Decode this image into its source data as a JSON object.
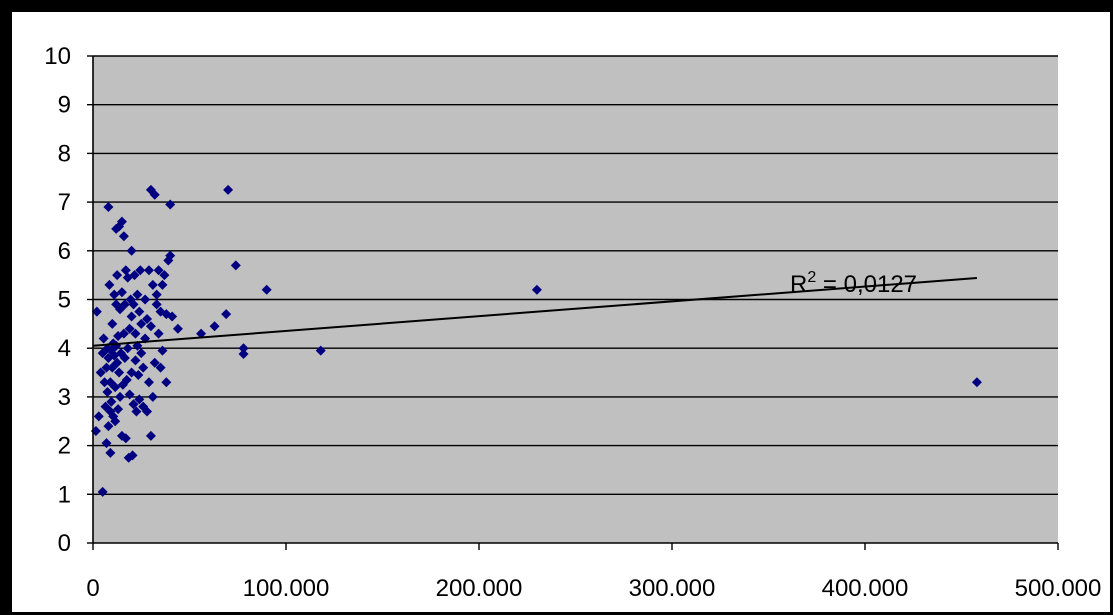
{
  "chart_data": {
    "type": "scatter",
    "title": "",
    "xlabel": "",
    "ylabel": "",
    "xlim": [
      0,
      500000
    ],
    "ylim": [
      0,
      10
    ],
    "x_ticks": [
      0,
      100000,
      200000,
      300000,
      400000,
      500000
    ],
    "x_tick_labels": [
      "0",
      "100.000",
      "200.000",
      "300.000",
      "400.000",
      "500.000"
    ],
    "y_ticks": [
      0,
      1,
      2,
      3,
      4,
      5,
      6,
      7,
      8,
      9,
      10
    ],
    "y_tick_labels": [
      "0",
      "1",
      "2",
      "3",
      "4",
      "5",
      "6",
      "7",
      "8",
      "9",
      "10"
    ],
    "grid": "horizontal",
    "plot_area_color": "#c0c0c0",
    "gridline_color": "#000000",
    "marker_color": "#000080",
    "trendline": {
      "type": "linear",
      "x_range": [
        0,
        458000
      ],
      "intercept": 4.05,
      "slope": 3.04e-06,
      "color": "#000000",
      "label": "R² = 0,0127"
    },
    "points": [
      [
        1500,
        2.3
      ],
      [
        2000,
        4.75
      ],
      [
        3000,
        2.6
      ],
      [
        4000,
        3.5
      ],
      [
        5000,
        1.05
      ],
      [
        5000,
        3.9
      ],
      [
        5500,
        4.2
      ],
      [
        6000,
        3.3
      ],
      [
        6500,
        2.8
      ],
      [
        7000,
        3.6
      ],
      [
        7000,
        2.05
      ],
      [
        7500,
        4.0
      ],
      [
        7500,
        3.1
      ],
      [
        8000,
        3.8
      ],
      [
        8000,
        2.4
      ],
      [
        8000,
        6.9
      ],
      [
        8500,
        5.3
      ],
      [
        9000,
        2.7
      ],
      [
        9000,
        3.3
      ],
      [
        9000,
        1.85
      ],
      [
        9500,
        3.95
      ],
      [
        9500,
        2.9
      ],
      [
        10000,
        4.5
      ],
      [
        10000,
        3.6
      ],
      [
        10500,
        2.6
      ],
      [
        10500,
        4.1
      ],
      [
        11000,
        5.1
      ],
      [
        11000,
        3.85
      ],
      [
        11500,
        2.5
      ],
      [
        11500,
        3.2
      ],
      [
        12000,
        4.9
      ],
      [
        12000,
        4.05
      ],
      [
        12000,
        6.45
      ],
      [
        12500,
        3.7
      ],
      [
        12500,
        5.5
      ],
      [
        13000,
        2.75
      ],
      [
        13000,
        4.25
      ],
      [
        13500,
        3.5
      ],
      [
        13500,
        6.5
      ],
      [
        14000,
        4.8
      ],
      [
        14000,
        3.0
      ],
      [
        14500,
        3.9
      ],
      [
        15000,
        6.6
      ],
      [
        15000,
        2.2
      ],
      [
        15000,
        5.15
      ],
      [
        15500,
        3.25
      ],
      [
        16000,
        4.3
      ],
      [
        16000,
        6.3
      ],
      [
        16500,
        3.8
      ],
      [
        16500,
        4.9
      ],
      [
        17000,
        2.15
      ],
      [
        17000,
        5.6
      ],
      [
        17500,
        3.35
      ],
      [
        18000,
        4.0
      ],
      [
        18000,
        5.45
      ],
      [
        18500,
        1.75
      ],
      [
        19000,
        4.4
      ],
      [
        19000,
        3.05
      ],
      [
        19500,
        5.0
      ],
      [
        20000,
        3.5
      ],
      [
        20000,
        4.65
      ],
      [
        20000,
        6.0
      ],
      [
        20500,
        1.8
      ],
      [
        21000,
        4.9
      ],
      [
        21000,
        2.85
      ],
      [
        21500,
        5.5
      ],
      [
        22000,
        3.75
      ],
      [
        22000,
        4.3
      ],
      [
        22500,
        2.7
      ],
      [
        23000,
        5.1
      ],
      [
        23000,
        4.05
      ],
      [
        23500,
        3.45
      ],
      [
        24000,
        4.75
      ],
      [
        24000,
        2.95
      ],
      [
        24500,
        5.6
      ],
      [
        25000,
        3.9
      ],
      [
        25000,
        4.5
      ],
      [
        26000,
        2.8
      ],
      [
        26000,
        3.6
      ],
      [
        27000,
        4.2
      ],
      [
        27000,
        5.0
      ],
      [
        28000,
        2.7
      ],
      [
        28000,
        4.6
      ],
      [
        29000,
        3.3
      ],
      [
        29000,
        5.6
      ],
      [
        30000,
        2.2
      ],
      [
        30000,
        4.45
      ],
      [
        30000,
        7.25
      ],
      [
        31000,
        3.0
      ],
      [
        31000,
        5.3
      ],
      [
        32000,
        7.15
      ],
      [
        32000,
        3.7
      ],
      [
        33000,
        4.9
      ],
      [
        33000,
        5.1
      ],
      [
        34000,
        4.3
      ],
      [
        34000,
        5.6
      ],
      [
        35000,
        3.6
      ],
      [
        35000,
        4.75
      ],
      [
        36000,
        5.3
      ],
      [
        36000,
        3.95
      ],
      [
        37000,
        5.5
      ],
      [
        38000,
        4.7
      ],
      [
        38000,
        3.3
      ],
      [
        39000,
        5.8
      ],
      [
        40000,
        5.9
      ],
      [
        40000,
        6.95
      ],
      [
        41000,
        4.65
      ],
      [
        44000,
        4.4
      ],
      [
        56000,
        4.3
      ],
      [
        63000,
        4.45
      ],
      [
        69000,
        4.7
      ],
      [
        70000,
        7.25
      ],
      [
        74000,
        5.7
      ],
      [
        78000,
        4.0
      ],
      [
        78000,
        3.88
      ],
      [
        90000,
        5.2
      ],
      [
        118000,
        3.95
      ],
      [
        230000,
        5.2
      ],
      [
        458000,
        3.3
      ]
    ]
  }
}
